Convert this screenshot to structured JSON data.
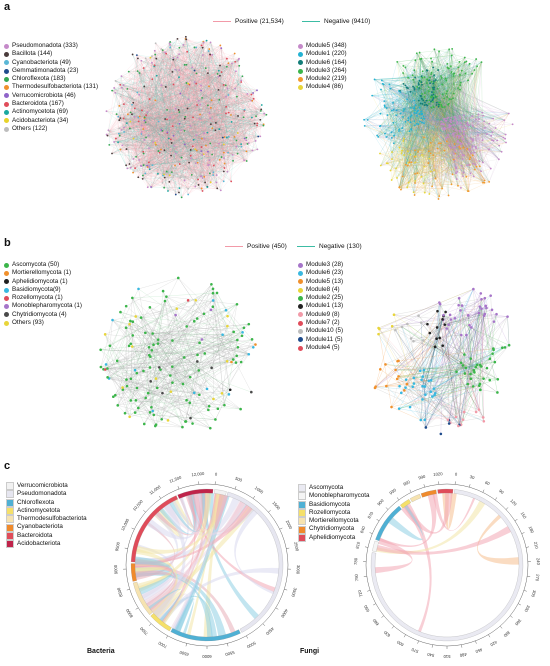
{
  "panels": {
    "a": {
      "label": "a",
      "legend": {
        "positive": {
          "text": "Positive (21,534)",
          "color": "#f29aa8"
        },
        "negative": {
          "text": "Negative (9410)",
          "color": "#3cbca4"
        }
      },
      "phyla": [
        {
          "text": "Pseudomonadota (333)",
          "color": "#c58ac9"
        },
        {
          "text": "Bacillota (144)",
          "color": "#4a3b3b"
        },
        {
          "text": "Cyanobacteriota (49)",
          "color": "#5ab7d6"
        },
        {
          "text": "Gemmatimonadota (23)",
          "color": "#1f4c8c"
        },
        {
          "text": "Chloroflexota (183)",
          "color": "#35a853"
        },
        {
          "text": "Thermodesulfobacteriota (131)",
          "color": "#f0902c"
        },
        {
          "text": "Verrucomicrobiota (46)",
          "color": "#8f64c9"
        },
        {
          "text": "Bacteroidota (167)",
          "color": "#e04c5a"
        },
        {
          "text": "Actinomycetota (69)",
          "color": "#1aa8a0"
        },
        {
          "text": "Acidobacteriota (34)",
          "color": "#e7d32a"
        },
        {
          "text": "Others (122)",
          "color": "#bdbdbd"
        }
      ],
      "modules": [
        {
          "text": "Module5 (348)",
          "color": "#c58ac9"
        },
        {
          "text": "Module1 (220)",
          "color": "#23b2d3"
        },
        {
          "text": "Module6 (164)",
          "color": "#127d78"
        },
        {
          "text": "Module3 (264)",
          "color": "#3bb54a"
        },
        {
          "text": "Module2 (219)",
          "color": "#f29a2e"
        },
        {
          "text": "Module4 (86)",
          "color": "#e8d53a"
        }
      ]
    },
    "b": {
      "label": "b",
      "legend": {
        "positive": {
          "text": "Positive (450)",
          "color": "#f29aa8"
        },
        "negative": {
          "text": "Negative (130)",
          "color": "#3cbca4"
        }
      },
      "phyla": [
        {
          "text": "Ascomycota (50)",
          "color": "#3bb54a"
        },
        {
          "text": "Mortierellomycota (1)",
          "color": "#f0902c"
        },
        {
          "text": "Aphelidiomycota (1)",
          "color": "#1f1f1f"
        },
        {
          "text": "Basidiomycota(9)",
          "color": "#39b8e0"
        },
        {
          "text": "Rozellomycota (1)",
          "color": "#e04c5a"
        },
        {
          "text": "Monoblepharomycota (1)",
          "color": "#a675c9"
        },
        {
          "text": "Chytridiomycota (4)",
          "color": "#4a4a4a"
        },
        {
          "text": "Others (93)",
          "color": "#e8d53a"
        }
      ],
      "modules": [
        {
          "text": "Module3 (28)",
          "color": "#a675c9"
        },
        {
          "text": "Module6 (23)",
          "color": "#39b8e0"
        },
        {
          "text": "Module5 (13)",
          "color": "#f0902c"
        },
        {
          "text": "Module8 (4)",
          "color": "#e8d53a"
        },
        {
          "text": "Module2 (25)",
          "color": "#3bb54a"
        },
        {
          "text": "Module1 (13)",
          "color": "#222222"
        },
        {
          "text": "Module9 (8)",
          "color": "#f29aa8"
        },
        {
          "text": "Module7 (2)",
          "color": "#e04c5a"
        },
        {
          "text": "Module10 (5)",
          "color": "#bdbdbd"
        },
        {
          "text": "Module11 (5)",
          "color": "#1f4c8c"
        },
        {
          "text": "Module4 (5)",
          "color": "#e04c5a"
        }
      ]
    },
    "c": {
      "label": "c",
      "bacteria": {
        "title": "Bacteria",
        "legend": [
          {
            "text": "Verrucomicrobiota",
            "color": "#f2f2f2"
          },
          {
            "text": "Pseudomonadota",
            "color": "#e6e6f0"
          },
          {
            "text": "Chloroflexota",
            "color": "#4fb0d4"
          },
          {
            "text": "Actinomycetota",
            "color": "#f5e06a"
          },
          {
            "text": "Thermodesulfobacteriota",
            "color": "#f6e3b0"
          },
          {
            "text": "Cyanobacteriota",
            "color": "#f08a2c"
          },
          {
            "text": "Bacteroidota",
            "color": "#e04c5a"
          },
          {
            "text": "Acidobacteriota",
            "color": "#c0234a"
          }
        ],
        "ticks": [
          "0",
          "500",
          "1000",
          "1500",
          "2000",
          "2500",
          "3000",
          "3500",
          "4000",
          "4500",
          "5000",
          "5500",
          "6000",
          "6500",
          "7000",
          "7500",
          "8000",
          "8500",
          "9000",
          "9500",
          "10,000",
          "10,500",
          "11,000",
          "11,500",
          "12,000"
        ]
      },
      "fungi": {
        "title": "Fungi",
        "legend": [
          {
            "text": "Ascomycota",
            "color": "#eaeaf2"
          },
          {
            "text": "Monoblepharomycota",
            "color": "#f5f5f5"
          },
          {
            "text": "Basidiomycota",
            "color": "#4fb0d4"
          },
          {
            "text": "Rozellomycota",
            "color": "#f5e06a"
          },
          {
            "text": "Mortierellomycota",
            "color": "#f6e3b0"
          },
          {
            "text": "Chytridiomycota",
            "color": "#f08a2c"
          },
          {
            "text": "Aphelidiomycota",
            "color": "#e04c5a"
          }
        ],
        "ticks": [
          "0",
          "30",
          "60",
          "90",
          "120",
          "150",
          "180",
          "210",
          "240",
          "270",
          "300",
          "330",
          "360",
          "390",
          "420",
          "450",
          "480",
          "510",
          "540",
          "570",
          "600",
          "630",
          "660",
          "690",
          "720",
          "750",
          "780",
          "810",
          "840",
          "870",
          "900",
          "930",
          "960",
          "990",
          "1020"
        ]
      }
    }
  }
}
